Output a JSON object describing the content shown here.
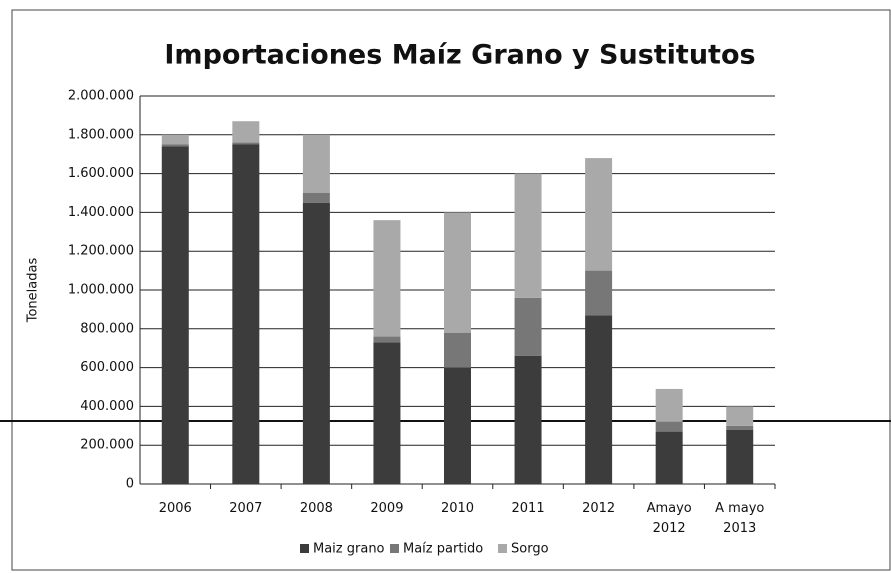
{
  "chart_data": {
    "type": "stacked-bar",
    "title": "Importaciones Maíz Grano y Sustitutos",
    "y_label": "Toneladas",
    "categories": [
      "2006",
      "2007",
      "2008",
      "2009",
      "2010",
      "2011",
      "2012",
      "Amayo\n2012",
      "A mayo\n2013"
    ],
    "series": [
      {
        "name": "Maiz grano",
        "color": "#3c3c3c",
        "values": [
          1740000,
          1750000,
          1450000,
          730000,
          600000,
          660000,
          870000,
          270000,
          280000
        ]
      },
      {
        "name": "Maíz partido",
        "color": "#777777",
        "values": [
          10000,
          10000,
          50000,
          30000,
          180000,
          300000,
          230000,
          50000,
          20000
        ]
      },
      {
        "name": "Sorgo",
        "color": "#a9a9a9",
        "values": [
          50000,
          110000,
          300000,
          600000,
          620000,
          640000,
          580000,
          170000,
          100000
        ]
      }
    ],
    "ylim": [
      0,
      2000000
    ],
    "yticks": [
      0,
      {
        "value": 200000,
        "label": "200.000"
      },
      {
        "value": 400000,
        "label": "400.000"
      },
      {
        "value": 600000,
        "label": "600.000"
      },
      {
        "value": 800000,
        "label": "800.000"
      },
      {
        "value": 1000000,
        "label": "1.000.000"
      },
      {
        "value": 1200000,
        "label": "1.200.000"
      },
      {
        "value": 1400000,
        "label": "1.400.000"
      },
      {
        "value": 1600000,
        "label": "1.600.000"
      },
      {
        "value": 1800000,
        "label": "1.800.000"
      },
      {
        "value": 2000000,
        "label": "2.000.000"
      }
    ],
    "grid": true,
    "legend": "bottom"
  }
}
